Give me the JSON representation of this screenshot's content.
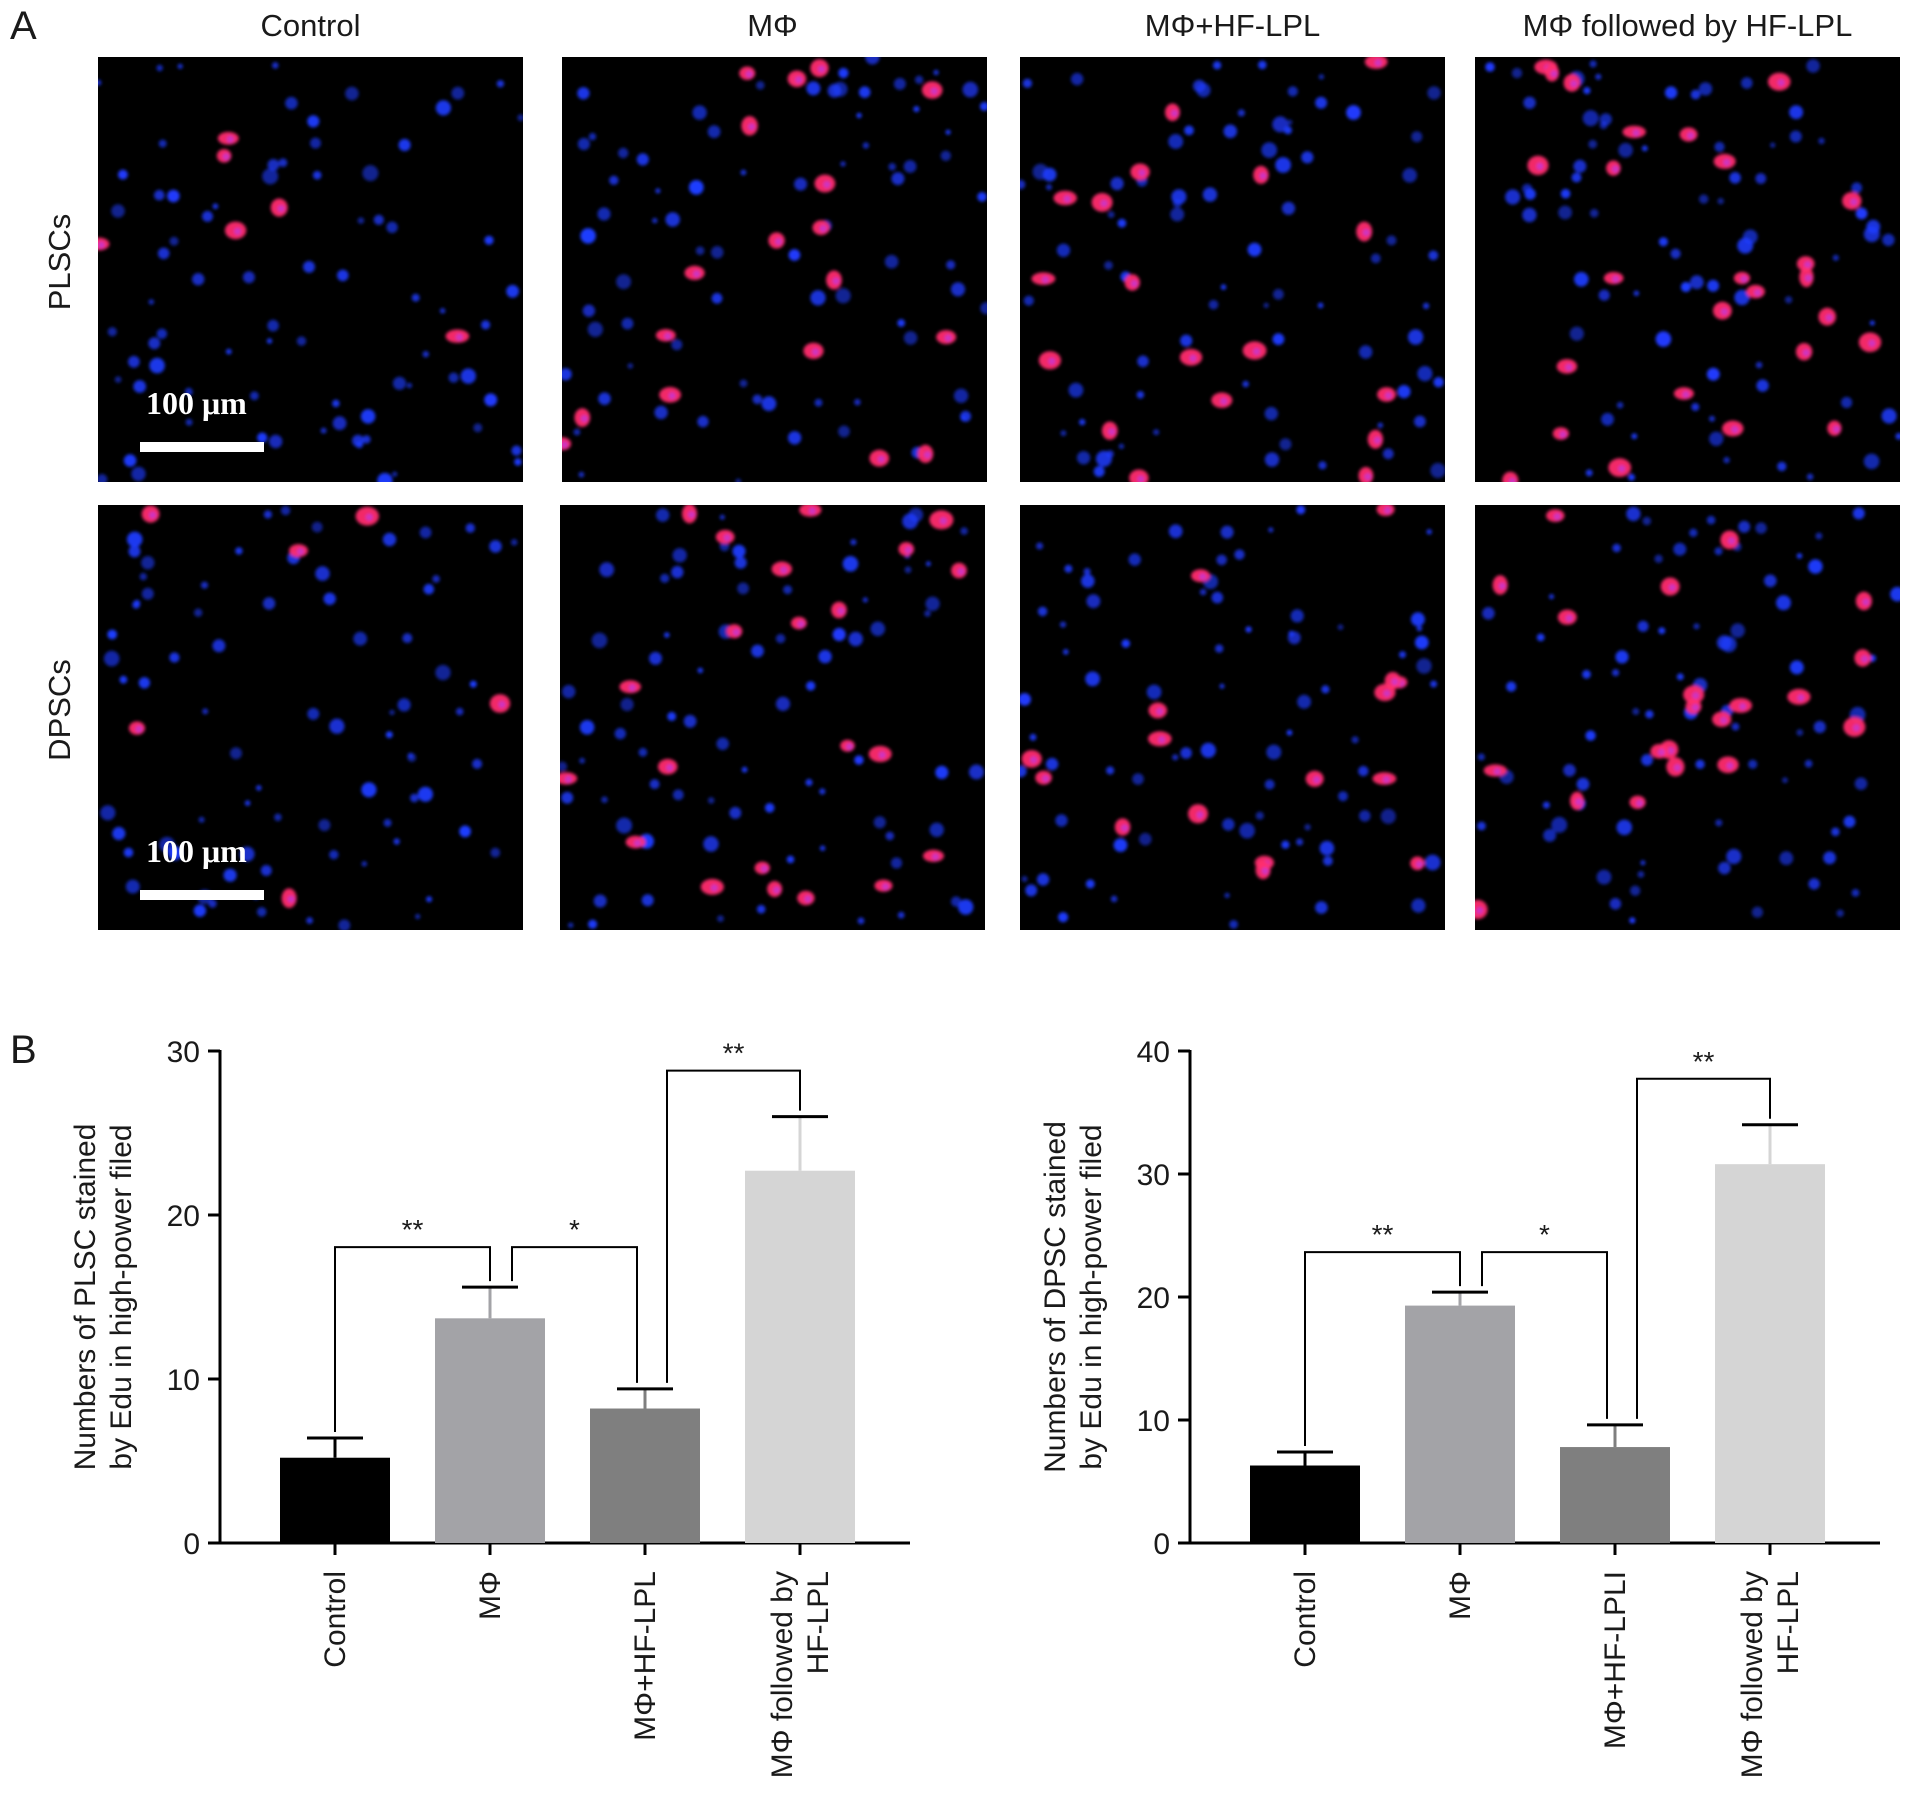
{
  "panel_a_label": "A",
  "panel_b_label": "B",
  "column_titles": [
    "Control",
    "MΦ",
    "MΦ+HF-LPL",
    "MΦ followed by HF-LPL"
  ],
  "row_labels": [
    "PLSCs",
    "DPSCs"
  ],
  "scale_bar_label": "100 μm",
  "colors": {
    "nuclei_blue": "#1f3cff",
    "edu_magenta": "#ff2d6e",
    "bar_fills": [
      "#000000",
      "#a3a3a7",
      "#7f7f7f",
      "#d5d5d5"
    ]
  },
  "chart_data": [
    {
      "type": "bar",
      "categories": [
        "Control",
        "MΦ",
        "MΦ+HF-LPL",
        "MΦ followed by HF-LPL"
      ],
      "values": [
        5.2,
        13.7,
        8.2,
        22.7
      ],
      "errors": [
        1.2,
        1.9,
        1.2,
        3.3
      ],
      "ylabel": [
        "Numbers of PLSC stained",
        "by Edu in high-power filed"
      ],
      "ylim": [
        0,
        30
      ],
      "yticks": [
        0,
        10,
        20,
        30
      ],
      "significance": [
        {
          "from": 0,
          "to": 1,
          "label": "**"
        },
        {
          "from": 1,
          "to": 2,
          "label": "*"
        },
        {
          "from": 2,
          "to": 3,
          "label": "**"
        }
      ]
    },
    {
      "type": "bar",
      "categories": [
        "Control",
        "MΦ",
        "MΦ+HF-LPLI",
        "MΦ followed by HF-LPL"
      ],
      "values": [
        6.3,
        19.3,
        7.8,
        30.8
      ],
      "errors": [
        1.1,
        1.1,
        1.8,
        3.2
      ],
      "ylabel": [
        "Numbers of DPSC stained",
        "by Edu in high-power filed"
      ],
      "ylim": [
        0,
        40
      ],
      "yticks": [
        0,
        10,
        20,
        30,
        40
      ],
      "significance": [
        {
          "from": 0,
          "to": 1,
          "label": "**"
        },
        {
          "from": 1,
          "to": 2,
          "label": "*"
        },
        {
          "from": 2,
          "to": 3,
          "label": "**"
        }
      ]
    }
  ]
}
